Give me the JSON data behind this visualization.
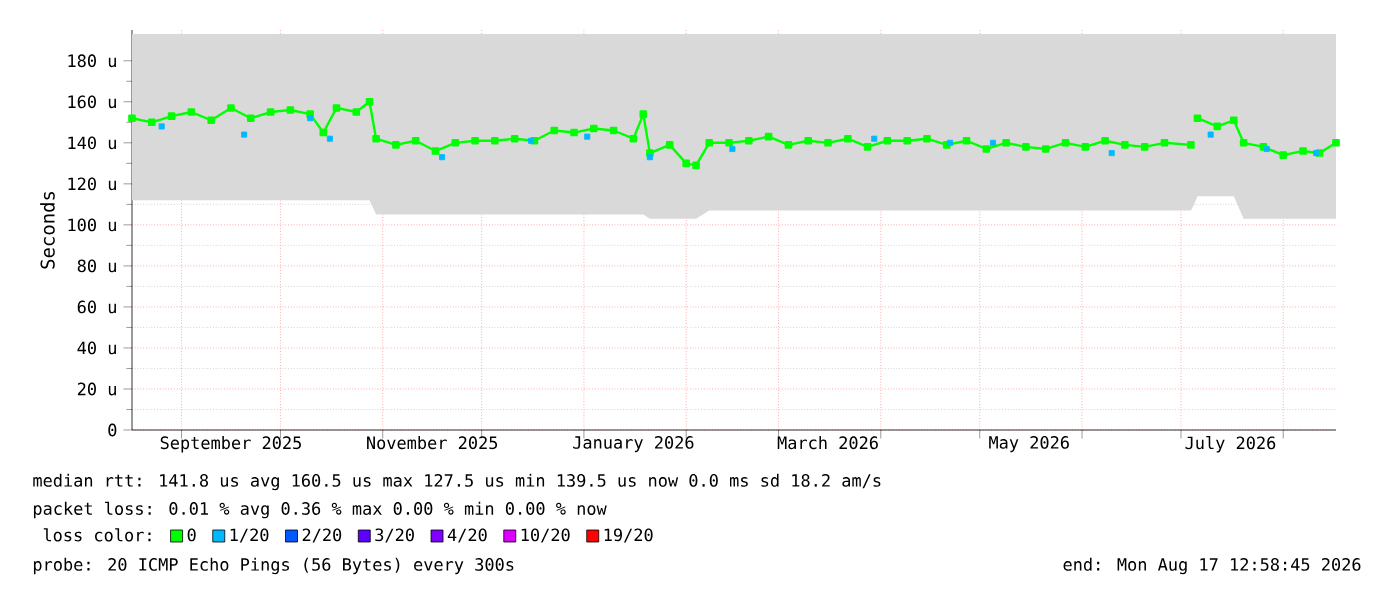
{
  "chart_data": {
    "type": "line",
    "ylabel": "Seconds",
    "legend_title": "loss color:",
    "legend": "bottom",
    "grid": true,
    "marker": "square",
    "xlim": [
      "2025-08-17",
      "2026-08-17"
    ],
    "ylim": [
      0,
      195
    ],
    "yticks": [
      0,
      {
        "value": 20,
        "label": "20 u"
      },
      {
        "value": 40,
        "label": "40 u"
      },
      {
        "value": 60,
        "label": "60 u"
      },
      {
        "value": 80,
        "label": "80 u"
      },
      {
        "value": 100,
        "label": "100 u"
      },
      {
        "value": 120,
        "label": "120 u"
      },
      {
        "value": 140,
        "label": "140 u"
      },
      {
        "value": 160,
        "label": "160 u"
      },
      {
        "value": 180,
        "label": "180 u"
      }
    ],
    "xticks": [
      {
        "value": "2025-09-01",
        "label": null
      },
      {
        "value": "2025-09-16",
        "label": "September 2025"
      },
      {
        "value": "2025-10-01",
        "label": null
      },
      {
        "value": "2025-11-01",
        "label": null
      },
      {
        "value": "2025-11-16",
        "label": "November 2025"
      },
      {
        "value": "2025-12-01",
        "label": null
      },
      {
        "value": "2026-01-01",
        "label": null
      },
      {
        "value": "2026-01-16",
        "label": "January 2026"
      },
      {
        "value": "2026-02-01",
        "label": null
      },
      {
        "value": "2026-03-01",
        "label": null
      },
      {
        "value": "2026-03-16",
        "label": "March 2026"
      },
      {
        "value": "2026-04-01",
        "label": null
      },
      {
        "value": "2026-05-01",
        "label": null
      },
      {
        "value": "2026-05-16",
        "label": "May 2026"
      },
      {
        "value": "2026-06-01",
        "label": null
      },
      {
        "value": "2026-07-01",
        "label": null
      },
      {
        "value": "2026-07-16",
        "label": "July 2026"
      },
      {
        "value": "2026-08-01",
        "label": null
      }
    ],
    "x": [
      "2025-08-17",
      "2025-08-23",
      "2025-08-29",
      "2025-09-04",
      "2025-09-10",
      "2025-09-16",
      "2025-09-22",
      "2025-09-28",
      "2025-10-04",
      "2025-10-10",
      "2025-10-14",
      "2025-10-18",
      "2025-10-24",
      "2025-10-28",
      "2025-10-30",
      "2025-11-05",
      "2025-11-11",
      "2025-11-17",
      "2025-11-23",
      "2025-11-29",
      "2025-12-05",
      "2025-12-11",
      "2025-12-17",
      "2025-12-23",
      "2025-12-29",
      "2026-01-04",
      "2026-01-10",
      "2026-01-16",
      "2026-01-19",
      "2026-01-21",
      "2026-01-27",
      "2026-02-01",
      "2026-02-04",
      "2026-02-08",
      "2026-02-14",
      "2026-02-20",
      "2026-02-26",
      "2026-03-04",
      "2026-03-10",
      "2026-03-16",
      "2026-03-22",
      "2026-03-28",
      "2026-04-03",
      "2026-04-09",
      "2026-04-15",
      "2026-04-21",
      "2026-04-27",
      "2026-05-03",
      "2026-05-09",
      "2026-05-15",
      "2026-05-21",
      "2026-05-27",
      "2026-06-02",
      "2026-06-08",
      "2026-06-14",
      "2026-06-20",
      "2026-06-26",
      "2026-07-04",
      "2026-07-05",
      "2026-07-06",
      "2026-07-12",
      "2026-07-17",
      "2026-07-20",
      "2026-07-26",
      "2026-08-01",
      "2026-08-07",
      "2026-08-12",
      "2026-08-17"
    ],
    "series": [
      {
        "name": "0",
        "color": "#00ff00",
        "values": [
          152,
          150,
          153,
          155,
          151,
          157,
          152,
          155,
          156,
          154,
          145,
          157,
          155,
          160,
          142,
          139,
          141,
          136,
          140,
          141,
          141,
          142,
          141,
          146,
          145,
          147,
          146,
          142,
          154,
          135,
          139,
          130,
          129,
          140,
          140,
          141,
          143,
          139,
          141,
          140,
          142,
          138,
          141,
          141,
          142,
          139,
          141,
          137,
          140,
          138,
          137,
          140,
          138,
          141,
          139,
          138,
          140,
          139,
          null,
          152,
          148,
          151,
          140,
          138,
          134,
          136,
          135,
          140
        ],
        "lower": [
          112,
          112,
          112,
          112,
          112,
          112,
          112,
          112,
          112,
          112,
          112,
          112,
          112,
          112,
          105,
          105,
          105,
          105,
          105,
          105,
          105,
          105,
          105,
          105,
          105,
          105,
          105,
          105,
          105,
          103,
          103,
          103,
          103,
          107,
          107,
          107,
          107,
          107,
          107,
          107,
          107,
          107,
          107,
          107,
          107,
          107,
          107,
          107,
          107,
          107,
          107,
          107,
          107,
          107,
          107,
          107,
          107,
          107,
          110,
          114,
          114,
          114,
          103,
          103,
          103,
          103,
          103,
          103
        ],
        "upper": [
          193,
          193,
          193,
          193,
          193,
          193,
          193,
          193,
          193,
          193,
          193,
          193,
          193,
          193,
          193,
          193,
          193,
          193,
          193,
          193,
          193,
          193,
          193,
          193,
          193,
          193,
          193,
          193,
          193,
          193,
          193,
          193,
          193,
          193,
          193,
          193,
          193,
          193,
          193,
          193,
          193,
          193,
          193,
          193,
          193,
          193,
          193,
          193,
          193,
          193,
          193,
          193,
          193,
          193,
          193,
          193,
          193,
          193,
          193,
          193,
          193,
          193,
          193,
          193,
          193,
          193,
          193,
          193
        ]
      },
      {
        "name": "1/20",
        "color": "#00b8ff",
        "type": "scatter",
        "x": [
          "2025-08-26",
          "2025-09-20",
          "2025-10-10",
          "2025-10-16",
          "2025-11-19",
          "2025-12-16",
          "2026-01-02",
          "2026-01-21",
          "2026-02-15",
          "2026-03-30",
          "2026-04-22",
          "2026-05-05",
          "2026-06-10",
          "2026-07-10",
          "2026-07-27",
          "2026-08-11"
        ],
        "values": [
          148,
          144,
          152,
          142,
          133,
          141,
          143,
          133,
          137,
          142,
          140,
          140,
          135,
          144,
          137,
          135
        ]
      },
      {
        "name": "2/20",
        "color": "#0059ff",
        "type": "scatter",
        "values": [
          null,
          null,
          null,
          null,
          null,
          null,
          null,
          null,
          null,
          null,
          null,
          null,
          null,
          null,
          null,
          null,
          null,
          null,
          null,
          null,
          null,
          null,
          null,
          null,
          null,
          null,
          null,
          null,
          null,
          null,
          null,
          null,
          null,
          null,
          null,
          null,
          null,
          null,
          null,
          null,
          null,
          null,
          null,
          null,
          null,
          null,
          null,
          null,
          null,
          null,
          null,
          null,
          null,
          null,
          null,
          null,
          null,
          null,
          null,
          null,
          null,
          null,
          null,
          null,
          null,
          null,
          null,
          null
        ]
      },
      {
        "name": "3/20",
        "color": "#5e00ff",
        "type": "scatter",
        "values": [
          null,
          null,
          null,
          null,
          null,
          null,
          null,
          null,
          null,
          null,
          null,
          null,
          null,
          null,
          null,
          null,
          null,
          null,
          null,
          null,
          null,
          null,
          null,
          null,
          null,
          null,
          null,
          null,
          null,
          null,
          null,
          null,
          null,
          null,
          null,
          null,
          null,
          null,
          null,
          null,
          null,
          null,
          null,
          null,
          null,
          null,
          null,
          null,
          null,
          null,
          null,
          null,
          null,
          null,
          null,
          null,
          null,
          null,
          null,
          null,
          null,
          null,
          null,
          null,
          null,
          null,
          null,
          null
        ]
      },
      {
        "name": "4/20",
        "color": "#7e00ff",
        "type": "scatter",
        "values": [
          null,
          null,
          null,
          null,
          null,
          null,
          null,
          null,
          null,
          null,
          null,
          null,
          null,
          null,
          null,
          null,
          null,
          null,
          null,
          null,
          null,
          null,
          null,
          null,
          null,
          null,
          null,
          null,
          null,
          null,
          null,
          null,
          null,
          null,
          null,
          null,
          null,
          null,
          null,
          null,
          null,
          null,
          null,
          null,
          null,
          null,
          null,
          null,
          null,
          null,
          null,
          null,
          null,
          null,
          null,
          null,
          null,
          null,
          null,
          null,
          null,
          null,
          null,
          null,
          null,
          null,
          null,
          null
        ]
      },
      {
        "name": "10/20",
        "color": "#dd00ff",
        "type": "scatter",
        "values": [
          null,
          null,
          null,
          null,
          null,
          null,
          null,
          null,
          null,
          null,
          null,
          null,
          null,
          null,
          null,
          null,
          null,
          null,
          null,
          null,
          null,
          null,
          null,
          null,
          null,
          null,
          null,
          null,
          null,
          null,
          null,
          null,
          null,
          null,
          null,
          null,
          null,
          null,
          null,
          null,
          null,
          null,
          null,
          null,
          null,
          null,
          null,
          null,
          null,
          null,
          null,
          null,
          null,
          null,
          null,
          null,
          null,
          null,
          null,
          null,
          null,
          null,
          null,
          null,
          null,
          null,
          null,
          null
        ]
      },
      {
        "name": "19/20",
        "color": "#ff0000",
        "type": "scatter",
        "values": [
          null,
          null,
          null,
          null,
          null,
          null,
          null,
          null,
          null,
          null,
          null,
          null,
          null,
          null,
          null,
          null,
          null,
          null,
          null,
          null,
          null,
          null,
          null,
          null,
          null,
          null,
          null,
          null,
          null,
          null,
          null,
          null,
          null,
          null,
          null,
          null,
          null,
          null,
          null,
          null,
          null,
          null,
          null,
          null,
          null,
          null,
          null,
          null,
          null,
          null,
          null,
          null,
          null,
          null,
          null,
          null,
          null,
          null,
          null,
          null,
          null,
          null,
          null,
          null,
          null,
          null,
          null,
          null
        ]
      }
    ],
    "annotations": [
      "median rtt:  141.8 us avg  160.5 us max  127.5 us min  139.5 us now  0.0 ms sd  18.2   am/s",
      "packet loss: 0.01 % avg  0.36 % max  0.00 % min  0.00 % now",
      "probe:       20 ICMP Echo Pings (56 Bytes) every 300s",
      "end: Mon Aug 17 12:58:45 2026"
    ]
  }
}
